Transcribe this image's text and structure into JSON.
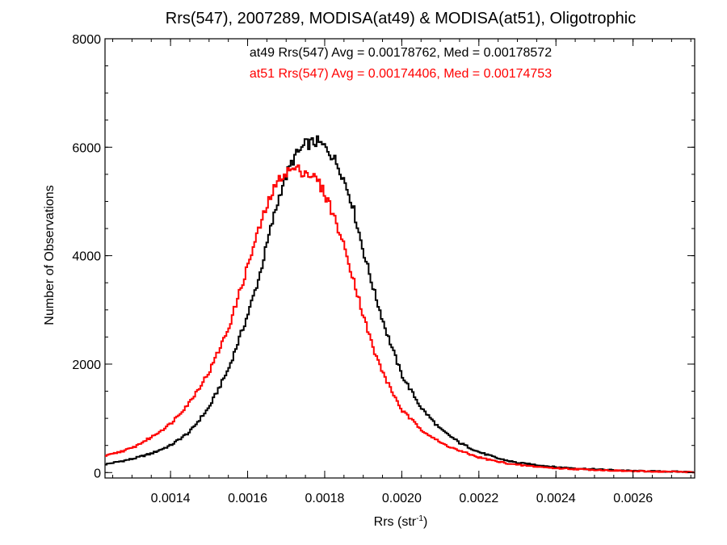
{
  "chart_data": {
    "type": "line",
    "title": "Rrs(547), 2007289, MODISA(at49) & MODISA(at51), Oligotrophic",
    "xlabel_main": "Rrs (str",
    "xlabel_sup": "-1",
    "xlabel_close": ")",
    "ylabel": "Number of Observations",
    "xlim": [
      0.00123,
      0.00276
    ],
    "ylim": [
      -100,
      8000
    ],
    "x_ticks": [
      {
        "value": 0.0014,
        "label": "0.0014"
      },
      {
        "value": 0.0016,
        "label": "0.0016"
      },
      {
        "value": 0.0018,
        "label": "0.0018"
      },
      {
        "value": 0.002,
        "label": "0.0020"
      },
      {
        "value": 0.0022,
        "label": "0.0022"
      },
      {
        "value": 0.0024,
        "label": "0.0024"
      },
      {
        "value": 0.0026,
        "label": "0.0026"
      }
    ],
    "y_ticks": [
      {
        "value": 0,
        "label": "0"
      },
      {
        "value": 2000,
        "label": "2000"
      },
      {
        "value": 4000,
        "label": "4000"
      },
      {
        "value": 6000,
        "label": "6000"
      },
      {
        "value": 8000,
        "label": "8000"
      }
    ],
    "grid": false,
    "legend_placement": "top-center",
    "annotations": [
      {
        "text": "at49 Rrs(547) Avg = 0.00178762, Med = 0.00178572",
        "color": "#000000"
      },
      {
        "text": "at51 Rrs(547) Avg = 0.00174406, Med = 0.00174753",
        "color": "#ff0000"
      }
    ],
    "series": [
      {
        "color": "#000000",
        "style": "step",
        "x": [
          0.00123,
          0.0013,
          0.00135,
          0.0014,
          0.00145,
          0.0015,
          0.00155,
          0.0016,
          0.00163,
          0.00166,
          0.00169,
          0.00172,
          0.00175,
          0.00178,
          0.00181,
          0.00184,
          0.00187,
          0.0019,
          0.00193,
          0.00196,
          0.002,
          0.00205,
          0.0021,
          0.00215,
          0.0022,
          0.00225,
          0.0023,
          0.0024,
          0.0025,
          0.0026,
          0.00276
        ],
        "y": [
          150,
          250,
          350,
          500,
          750,
          1200,
          1900,
          2900,
          3600,
          4500,
          5300,
          5800,
          6050,
          6100,
          5950,
          5600,
          5000,
          4100,
          3300,
          2600,
          1800,
          1200,
          800,
          550,
          380,
          260,
          180,
          100,
          60,
          30,
          10
        ]
      },
      {
        "color": "#ff0000",
        "style": "step",
        "x": [
          0.00123,
          0.0013,
          0.00135,
          0.0014,
          0.00145,
          0.0015,
          0.00155,
          0.0016,
          0.00163,
          0.00166,
          0.00169,
          0.00172,
          0.00175,
          0.00178,
          0.00181,
          0.00184,
          0.00187,
          0.0019,
          0.00193,
          0.00196,
          0.002,
          0.00205,
          0.0021,
          0.00215,
          0.0022,
          0.00225,
          0.0023,
          0.0024,
          0.0025,
          0.0026,
          0.00276
        ],
        "y": [
          300,
          450,
          650,
          900,
          1300,
          1850,
          2650,
          3800,
          4500,
          5100,
          5500,
          5600,
          5550,
          5400,
          5000,
          4400,
          3700,
          2900,
          2200,
          1700,
          1150,
          800,
          550,
          400,
          280,
          200,
          140,
          80,
          50,
          25,
          10
        ]
      }
    ]
  }
}
